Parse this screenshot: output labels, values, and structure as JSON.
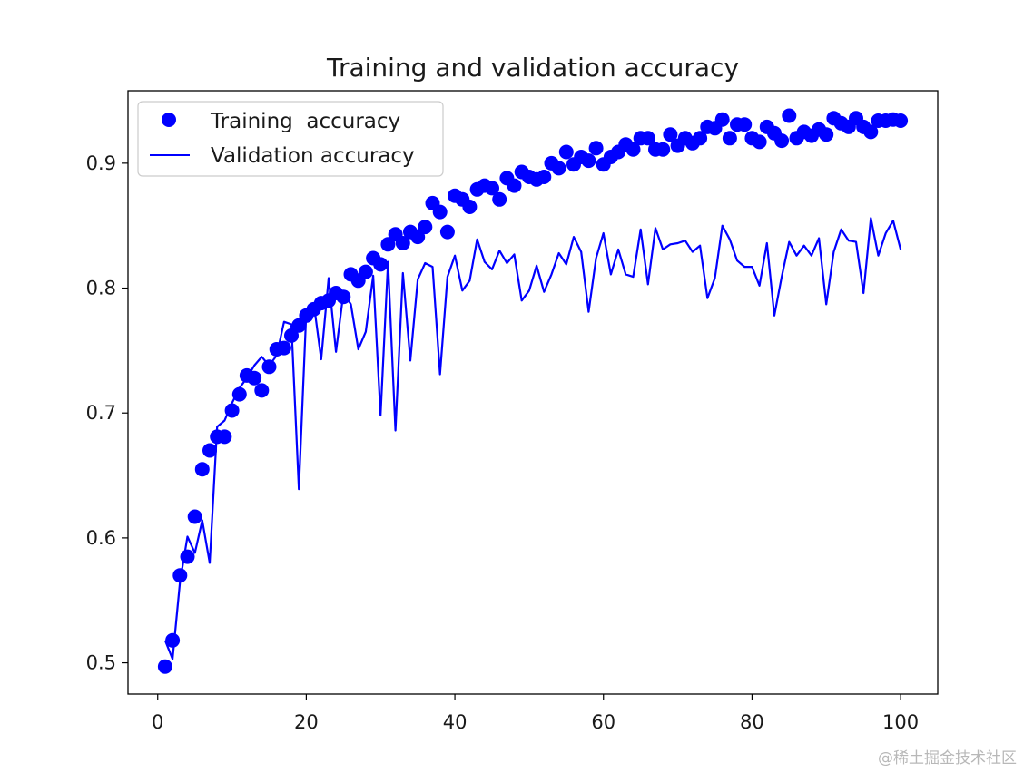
{
  "chart_data": {
    "type": "line",
    "title": "Training and validation accuracy",
    "xlabel": "",
    "ylabel": "",
    "xlim": [
      -4,
      105
    ],
    "ylim": [
      0.475,
      0.958
    ],
    "xticks": [
      0,
      20,
      40,
      60,
      80,
      100
    ],
    "xtick_labels": [
      "0",
      "20",
      "40",
      "60",
      "80",
      "100"
    ],
    "yticks": [
      0.5,
      0.6,
      0.7,
      0.8,
      0.9
    ],
    "ytick_labels": [
      "0.5",
      "0.6",
      "0.7",
      "0.8",
      "0.9"
    ],
    "grid": false,
    "legend_position": "upper-left",
    "series": [
      {
        "name": "Training  accuracy",
        "style": "scatter",
        "color": "#0000ff",
        "values": [
          0.497,
          0.518,
          0.57,
          0.585,
          0.617,
          0.655,
          0.67,
          0.681,
          0.681,
          0.702,
          0.715,
          0.73,
          0.728,
          0.718,
          0.737,
          0.751,
          0.752,
          0.762,
          0.77,
          0.778,
          0.783,
          0.788,
          0.79,
          0.796,
          0.793,
          0.811,
          0.806,
          0.813,
          0.824,
          0.819,
          0.835,
          0.843,
          0.836,
          0.845,
          0.841,
          0.849,
          0.868,
          0.861,
          0.845,
          0.874,
          0.871,
          0.865,
          0.879,
          0.882,
          0.88,
          0.871,
          0.888,
          0.882,
          0.893,
          0.889,
          0.887,
          0.889,
          0.9,
          0.896,
          0.909,
          0.899,
          0.905,
          0.902,
          0.912,
          0.899,
          0.905,
          0.909,
          0.915,
          0.911,
          0.92,
          0.92,
          0.911,
          0.911,
          0.923,
          0.914,
          0.92,
          0.916,
          0.92,
          0.929,
          0.928,
          0.935,
          0.92,
          0.931,
          0.931,
          0.92,
          0.917,
          0.929,
          0.924,
          0.918,
          0.938,
          0.92,
          0.925,
          0.922,
          0.927,
          0.923,
          0.936,
          0.932,
          0.929,
          0.936,
          0.929,
          0.925,
          0.934,
          0.934,
          0.935,
          0.934
        ]
      },
      {
        "name": "Validation accuracy",
        "style": "line",
        "color": "#0000ff",
        "values": [
          0.518,
          0.503,
          0.565,
          0.601,
          0.588,
          0.614,
          0.58,
          0.689,
          0.694,
          0.708,
          0.72,
          0.728,
          0.738,
          0.745,
          0.738,
          0.746,
          0.773,
          0.771,
          0.639,
          0.781,
          0.788,
          0.743,
          0.808,
          0.749,
          0.796,
          0.787,
          0.751,
          0.765,
          0.81,
          0.698,
          0.821,
          0.686,
          0.812,
          0.742,
          0.807,
          0.82,
          0.817,
          0.731,
          0.809,
          0.826,
          0.798,
          0.806,
          0.839,
          0.821,
          0.815,
          0.83,
          0.82,
          0.827,
          0.79,
          0.798,
          0.818,
          0.797,
          0.811,
          0.828,
          0.819,
          0.841,
          0.829,
          0.781,
          0.824,
          0.844,
          0.811,
          0.831,
          0.811,
          0.809,
          0.847,
          0.803,
          0.848,
          0.831,
          0.835,
          0.836,
          0.838,
          0.829,
          0.834,
          0.792,
          0.808,
          0.85,
          0.839,
          0.822,
          0.817,
          0.817,
          0.802,
          0.836,
          0.778,
          0.809,
          0.837,
          0.826,
          0.834,
          0.826,
          0.84,
          0.787,
          0.829,
          0.847,
          0.838,
          0.837,
          0.796,
          0.856,
          0.826,
          0.844,
          0.854,
          0.831
        ]
      }
    ]
  },
  "watermark": "@稀土掘金技术社区"
}
